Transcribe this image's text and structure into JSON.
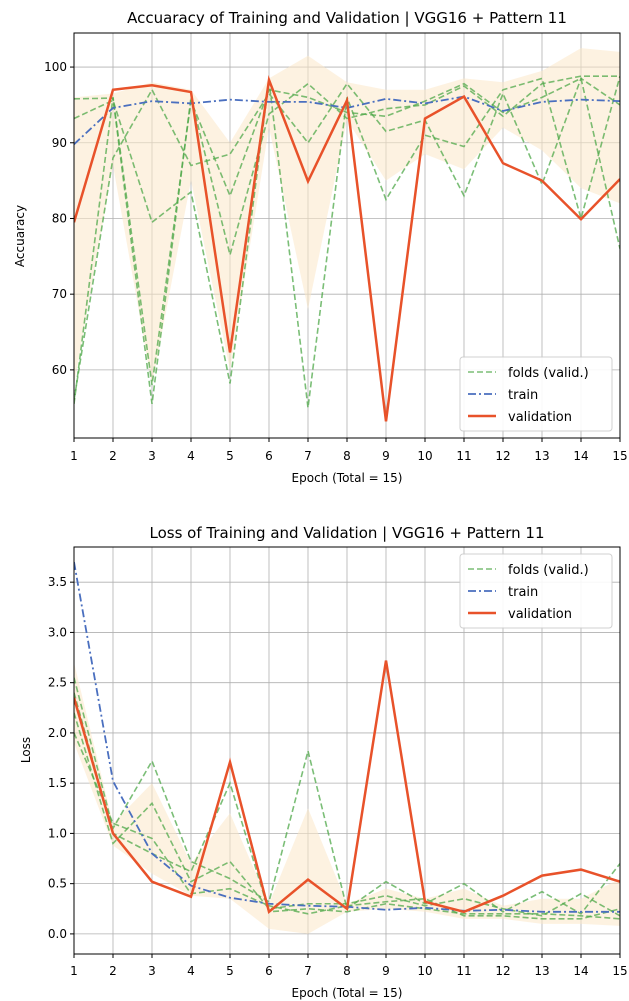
{
  "chart_data": [
    {
      "type": "line",
      "title": "Accuaracy of Training and Validation | VGG16 + Pattern 11",
      "xlabel": "Epoch (Total = 15)",
      "ylabel": "Accuaracy",
      "x": [
        1,
        2,
        3,
        4,
        5,
        6,
        7,
        8,
        9,
        10,
        11,
        12,
        13,
        14,
        15
      ],
      "xlim": [
        1,
        15
      ],
      "ylim": [
        51,
        104.5
      ],
      "yticks": [
        60,
        70,
        80,
        90,
        100
      ],
      "grid": true,
      "legend_position": "lower-right",
      "legend": [
        "folds (valid.)",
        "train",
        "validation"
      ],
      "series": [
        {
          "name": "folds (valid.)",
          "role": "fold",
          "values": [
            93.2,
            95.6,
            79.5,
            83.5,
            58.2,
            98.2,
            55.0,
            96.0,
            82.5,
            91.0,
            89.5,
            97.0,
            98.5,
            80.0,
            98.8
          ]
        },
        {
          "name": "folds (valid.)",
          "role": "fold",
          "values": [
            95.8,
            95.9,
            55.5,
            96.0,
            75.2,
            93.8,
            97.8,
            93.2,
            94.5,
            95.0,
            97.5,
            93.5,
            97.8,
            98.8,
            98.8
          ]
        },
        {
          "name": "folds (valid.)",
          "role": "fold",
          "values": [
            56.0,
            88.0,
            97.0,
            87.0,
            88.5,
            96.5,
            90.0,
            97.8,
            91.5,
            93.0,
            83.0,
            96.5,
            84.5,
            98.5,
            95.0
          ]
        },
        {
          "name": "folds (valid.)",
          "role": "fold",
          "values": [
            55.5,
            96.0,
            58.0,
            95.5,
            83.0,
            97.0,
            96.0,
            94.0,
            93.5,
            95.5,
            97.8,
            94.0,
            96.0,
            98.5,
            76.0
          ]
        },
        {
          "name": "train",
          "role": "train",
          "values": [
            89.8,
            94.6,
            95.5,
            95.2,
            95.7,
            95.4,
            95.4,
            94.6,
            95.8,
            95.2,
            96.1,
            94.2,
            95.4,
            95.7,
            95.5
          ]
        },
        {
          "name": "validation",
          "role": "validation",
          "values": [
            79.5,
            97.0,
            97.6,
            96.7,
            62.3,
            98.3,
            84.9,
            95.6,
            53.2,
            93.2,
            96.1,
            87.3,
            85.0,
            79.9,
            85.2
          ]
        }
      ],
      "band": {
        "upper": [
          96.0,
          96.5,
          98.0,
          97.0,
          90.0,
          98.5,
          101.5,
          98.0,
          97.0,
          97.0,
          98.5,
          98.0,
          99.5,
          102.5,
          102.0
        ],
        "lower": [
          58.0,
          87.0,
          58.0,
          85.0,
          60.0,
          92.0,
          68.0,
          93.0,
          85.0,
          88.5,
          86.5,
          92.0,
          89.0,
          84.0,
          82.0
        ]
      }
    },
    {
      "type": "line",
      "title": "Loss of Training and Validation | VGG16 + Pattern 11",
      "xlabel": "Epoch (Total = 15)",
      "ylabel": "Loss",
      "x": [
        1,
        2,
        3,
        4,
        5,
        6,
        7,
        8,
        9,
        10,
        11,
        12,
        13,
        14,
        15
      ],
      "xlim": [
        1,
        15
      ],
      "ylim": [
        -0.2,
        3.85
      ],
      "yticks": [
        0.0,
        0.5,
        1.0,
        1.5,
        2.0,
        2.5,
        3.0,
        3.5
      ],
      "grid": true,
      "legend_position": "upper-right",
      "legend": [
        "folds (valid.)",
        "train",
        "validation"
      ],
      "series": [
        {
          "name": "folds (valid.)",
          "role": "fold",
          "values": [
            2.55,
            1.05,
            1.72,
            0.72,
            0.55,
            0.32,
            1.82,
            0.25,
            0.52,
            0.3,
            0.5,
            0.22,
            0.42,
            0.2,
            0.7
          ]
        },
        {
          "name": "folds (valid.)",
          "role": "fold",
          "values": [
            2.2,
            0.9,
            1.3,
            0.52,
            0.72,
            0.25,
            0.3,
            0.3,
            0.38,
            0.28,
            0.35,
            0.25,
            0.18,
            0.4,
            0.18
          ]
        },
        {
          "name": "folds (valid.)",
          "role": "fold",
          "values": [
            2.4,
            1.0,
            0.8,
            0.62,
            1.5,
            0.22,
            0.25,
            0.22,
            0.3,
            0.25,
            0.2,
            0.2,
            0.2,
            0.18,
            0.15
          ]
        },
        {
          "name": "folds (valid.)",
          "role": "fold",
          "values": [
            2.0,
            1.1,
            0.95,
            0.4,
            0.45,
            0.28,
            0.2,
            0.28,
            0.32,
            0.35,
            0.18,
            0.18,
            0.15,
            0.15,
            0.25
          ]
        },
        {
          "name": "train",
          "role": "train",
          "values": [
            3.7,
            1.52,
            0.8,
            0.48,
            0.36,
            0.3,
            0.28,
            0.27,
            0.24,
            0.26,
            0.23,
            0.24,
            0.22,
            0.22,
            0.22
          ]
        },
        {
          "name": "validation",
          "role": "validation",
          "values": [
            2.35,
            1.0,
            0.52,
            0.37,
            1.71,
            0.22,
            0.54,
            0.25,
            2.72,
            0.32,
            0.22,
            0.38,
            0.58,
            0.64,
            0.52
          ]
        }
      ],
      "band": {
        "upper": [
          2.7,
          1.1,
          1.5,
          0.7,
          1.2,
          0.3,
          1.25,
          0.3,
          0.45,
          0.35,
          0.45,
          0.28,
          0.35,
          0.35,
          0.55
        ],
        "lower": [
          1.9,
          0.88,
          0.6,
          0.38,
          0.35,
          0.05,
          0.0,
          0.22,
          0.25,
          0.22,
          0.15,
          0.15,
          0.1,
          0.1,
          0.08
        ]
      }
    }
  ]
}
